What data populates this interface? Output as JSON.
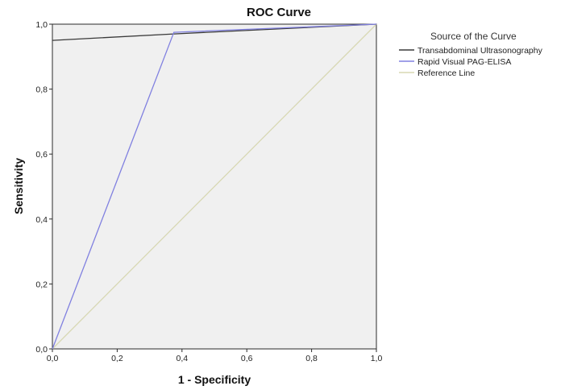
{
  "chart_data": {
    "type": "line",
    "title": "ROC Curve",
    "xlabel": "1 - Specificity",
    "ylabel": "Sensitivity",
    "xlim": [
      0,
      1
    ],
    "ylim": [
      0,
      1
    ],
    "x_ticks": [
      "0,0",
      "0,2",
      "0,4",
      "0,6",
      "0,8",
      "1,0"
    ],
    "y_ticks": [
      "0,0",
      "0,2",
      "0,4",
      "0,6",
      "0,8",
      "1,0"
    ],
    "grid": false,
    "plot_background": "#f0f0f0",
    "legend": {
      "title": "Source of the Curve",
      "placement": "right"
    },
    "series": [
      {
        "name": "Transabdominal Ultrasonography",
        "color": "#3a3a3a",
        "x": [
          0,
          0.375,
          1
        ],
        "y": [
          0.95,
          0.97,
          1
        ]
      },
      {
        "name": "Rapid Visual PAG-ELISA",
        "color": "#8080e0",
        "x": [
          0,
          0.375,
          1
        ],
        "y": [
          0,
          0.975,
          1
        ]
      },
      {
        "name": "Reference Line",
        "color": "#d8d8b4",
        "x": [
          0,
          1
        ],
        "y": [
          0,
          1
        ]
      }
    ]
  }
}
